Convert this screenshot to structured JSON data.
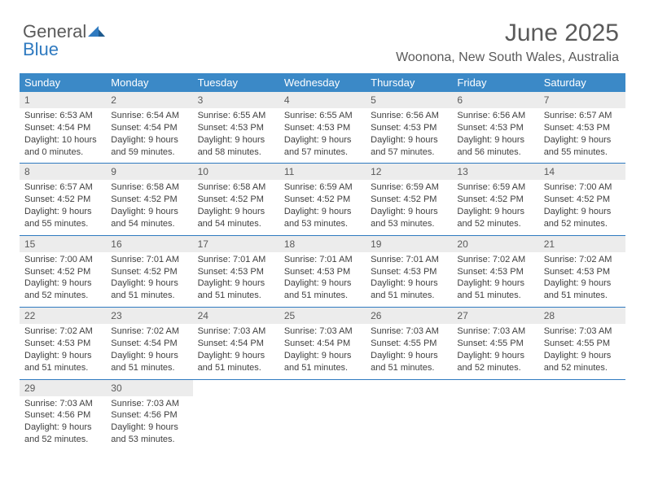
{
  "logo": {
    "general": "General",
    "blue": "Blue"
  },
  "title": "June 2025",
  "location": "Woonona, New South Wales, Australia",
  "colors": {
    "header_bg": "#3b89c7",
    "daynum_bg": "#ececec",
    "text": "#5a5a5a",
    "body_text": "#404040",
    "week_border": "#2f7ac0"
  },
  "weekdays": [
    "Sunday",
    "Monday",
    "Tuesday",
    "Wednesday",
    "Thursday",
    "Friday",
    "Saturday"
  ],
  "weeks": [
    [
      {
        "n": "1",
        "sr": "Sunrise: 6:53 AM",
        "ss": "Sunset: 4:54 PM",
        "dl": "Daylight: 10 hours and 0 minutes."
      },
      {
        "n": "2",
        "sr": "Sunrise: 6:54 AM",
        "ss": "Sunset: 4:54 PM",
        "dl": "Daylight: 9 hours and 59 minutes."
      },
      {
        "n": "3",
        "sr": "Sunrise: 6:55 AM",
        "ss": "Sunset: 4:53 PM",
        "dl": "Daylight: 9 hours and 58 minutes."
      },
      {
        "n": "4",
        "sr": "Sunrise: 6:55 AM",
        "ss": "Sunset: 4:53 PM",
        "dl": "Daylight: 9 hours and 57 minutes."
      },
      {
        "n": "5",
        "sr": "Sunrise: 6:56 AM",
        "ss": "Sunset: 4:53 PM",
        "dl": "Daylight: 9 hours and 57 minutes."
      },
      {
        "n": "6",
        "sr": "Sunrise: 6:56 AM",
        "ss": "Sunset: 4:53 PM",
        "dl": "Daylight: 9 hours and 56 minutes."
      },
      {
        "n": "7",
        "sr": "Sunrise: 6:57 AM",
        "ss": "Sunset: 4:53 PM",
        "dl": "Daylight: 9 hours and 55 minutes."
      }
    ],
    [
      {
        "n": "8",
        "sr": "Sunrise: 6:57 AM",
        "ss": "Sunset: 4:52 PM",
        "dl": "Daylight: 9 hours and 55 minutes."
      },
      {
        "n": "9",
        "sr": "Sunrise: 6:58 AM",
        "ss": "Sunset: 4:52 PM",
        "dl": "Daylight: 9 hours and 54 minutes."
      },
      {
        "n": "10",
        "sr": "Sunrise: 6:58 AM",
        "ss": "Sunset: 4:52 PM",
        "dl": "Daylight: 9 hours and 54 minutes."
      },
      {
        "n": "11",
        "sr": "Sunrise: 6:59 AM",
        "ss": "Sunset: 4:52 PM",
        "dl": "Daylight: 9 hours and 53 minutes."
      },
      {
        "n": "12",
        "sr": "Sunrise: 6:59 AM",
        "ss": "Sunset: 4:52 PM",
        "dl": "Daylight: 9 hours and 53 minutes."
      },
      {
        "n": "13",
        "sr": "Sunrise: 6:59 AM",
        "ss": "Sunset: 4:52 PM",
        "dl": "Daylight: 9 hours and 52 minutes."
      },
      {
        "n": "14",
        "sr": "Sunrise: 7:00 AM",
        "ss": "Sunset: 4:52 PM",
        "dl": "Daylight: 9 hours and 52 minutes."
      }
    ],
    [
      {
        "n": "15",
        "sr": "Sunrise: 7:00 AM",
        "ss": "Sunset: 4:52 PM",
        "dl": "Daylight: 9 hours and 52 minutes."
      },
      {
        "n": "16",
        "sr": "Sunrise: 7:01 AM",
        "ss": "Sunset: 4:52 PM",
        "dl": "Daylight: 9 hours and 51 minutes."
      },
      {
        "n": "17",
        "sr": "Sunrise: 7:01 AM",
        "ss": "Sunset: 4:53 PM",
        "dl": "Daylight: 9 hours and 51 minutes."
      },
      {
        "n": "18",
        "sr": "Sunrise: 7:01 AM",
        "ss": "Sunset: 4:53 PM",
        "dl": "Daylight: 9 hours and 51 minutes."
      },
      {
        "n": "19",
        "sr": "Sunrise: 7:01 AM",
        "ss": "Sunset: 4:53 PM",
        "dl": "Daylight: 9 hours and 51 minutes."
      },
      {
        "n": "20",
        "sr": "Sunrise: 7:02 AM",
        "ss": "Sunset: 4:53 PM",
        "dl": "Daylight: 9 hours and 51 minutes."
      },
      {
        "n": "21",
        "sr": "Sunrise: 7:02 AM",
        "ss": "Sunset: 4:53 PM",
        "dl": "Daylight: 9 hours and 51 minutes."
      }
    ],
    [
      {
        "n": "22",
        "sr": "Sunrise: 7:02 AM",
        "ss": "Sunset: 4:53 PM",
        "dl": "Daylight: 9 hours and 51 minutes."
      },
      {
        "n": "23",
        "sr": "Sunrise: 7:02 AM",
        "ss": "Sunset: 4:54 PM",
        "dl": "Daylight: 9 hours and 51 minutes."
      },
      {
        "n": "24",
        "sr": "Sunrise: 7:03 AM",
        "ss": "Sunset: 4:54 PM",
        "dl": "Daylight: 9 hours and 51 minutes."
      },
      {
        "n": "25",
        "sr": "Sunrise: 7:03 AM",
        "ss": "Sunset: 4:54 PM",
        "dl": "Daylight: 9 hours and 51 minutes."
      },
      {
        "n": "26",
        "sr": "Sunrise: 7:03 AM",
        "ss": "Sunset: 4:55 PM",
        "dl": "Daylight: 9 hours and 51 minutes."
      },
      {
        "n": "27",
        "sr": "Sunrise: 7:03 AM",
        "ss": "Sunset: 4:55 PM",
        "dl": "Daylight: 9 hours and 52 minutes."
      },
      {
        "n": "28",
        "sr": "Sunrise: 7:03 AM",
        "ss": "Sunset: 4:55 PM",
        "dl": "Daylight: 9 hours and 52 minutes."
      }
    ],
    [
      {
        "n": "29",
        "sr": "Sunrise: 7:03 AM",
        "ss": "Sunset: 4:56 PM",
        "dl": "Daylight: 9 hours and 52 minutes."
      },
      {
        "n": "30",
        "sr": "Sunrise: 7:03 AM",
        "ss": "Sunset: 4:56 PM",
        "dl": "Daylight: 9 hours and 53 minutes."
      },
      {
        "empty": true
      },
      {
        "empty": true
      },
      {
        "empty": true
      },
      {
        "empty": true
      },
      {
        "empty": true
      }
    ]
  ]
}
